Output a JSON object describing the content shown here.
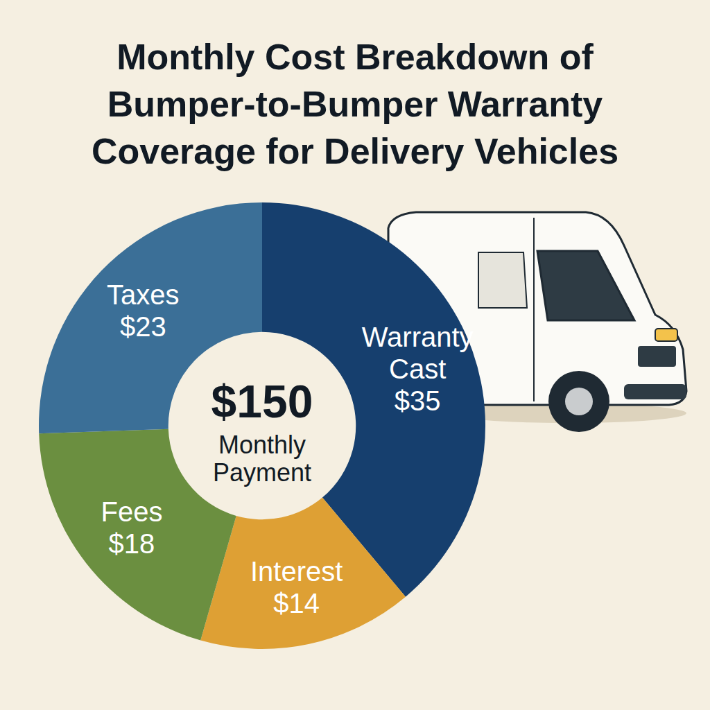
{
  "chart_data": {
    "type": "pie",
    "title": "Monthly Cost Breakdown of Bumper-to-Bumper Warranty Coverage for Delivery Vehicles",
    "categories": [
      "Warranty Cast",
      "Interest",
      "Fees",
      "Taxes"
    ],
    "values": [
      35,
      14,
      18,
      23
    ],
    "value_labels": [
      "$35",
      "$14",
      "$18",
      "$23"
    ],
    "colors": [
      "#163f6e",
      "#dea034",
      "#6b8f40",
      "#3b6f97"
    ],
    "data_labels": true,
    "annotations": [
      "$150",
      "Monthly Payment"
    ]
  }
}
